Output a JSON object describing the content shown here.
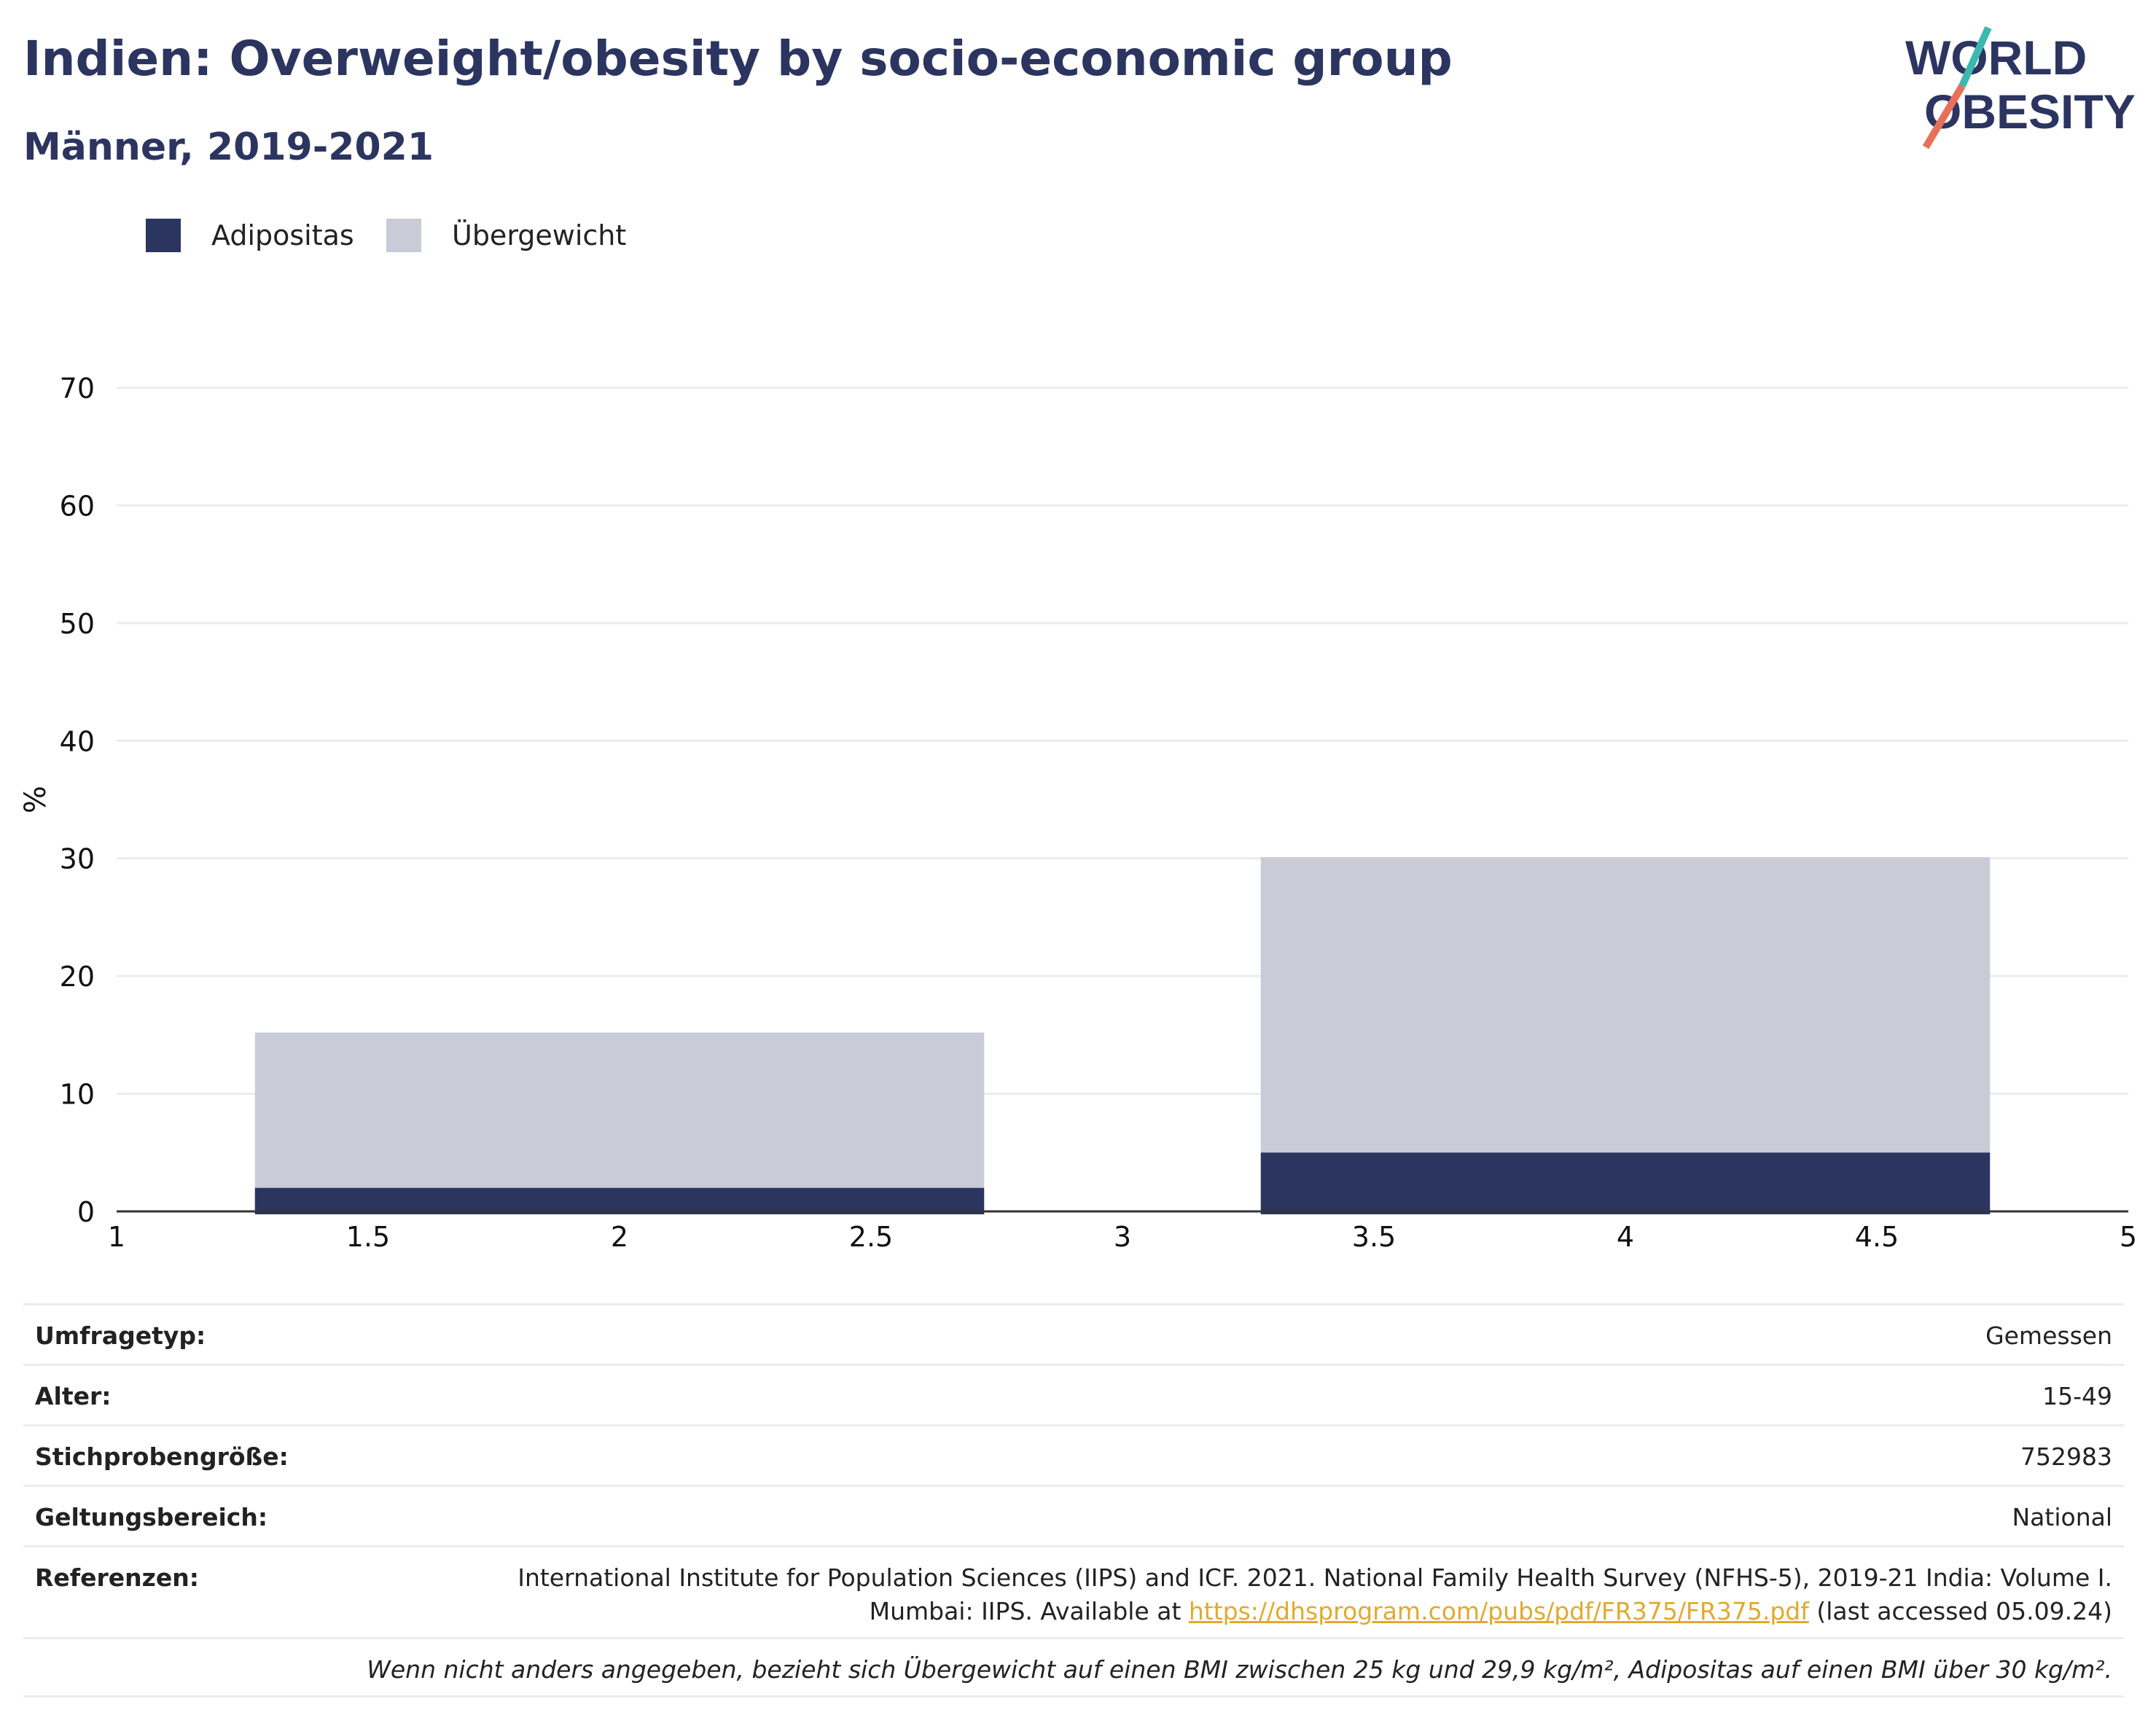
{
  "header": {
    "title": "Indien: Overweight/obesity by socio-economic group",
    "subtitle": "Männer, 2019-2021"
  },
  "logo": {
    "line1": "WORLD",
    "line2": "OBESITY",
    "colors": {
      "text": "#2c3560",
      "slash_top": "#3bb8b0",
      "slash_bottom": "#e8705a"
    }
  },
  "colors": {
    "adipositas": "#2c3560",
    "uebergewicht": "#c9cbd7",
    "grid": "#e9ecf1",
    "axis": "#333333"
  },
  "chart_data": {
    "type": "bar",
    "stacked": true,
    "legend": [
      "Adipositas",
      "Übergewicht"
    ],
    "legend_position": "top-left",
    "ylabel": "%",
    "xlim": [
      1,
      5
    ],
    "ylim": [
      0,
      70
    ],
    "x_ticks": [
      "1",
      "1.5",
      "2",
      "2.5",
      "3",
      "3.5",
      "4",
      "4.5",
      "5"
    ],
    "y_ticks": [
      "0",
      "10",
      "20",
      "30",
      "40",
      "50",
      "60",
      "70"
    ],
    "grid": true,
    "bars": [
      {
        "x": 2,
        "width": 1.45,
        "adipositas": 2.0,
        "uebergewicht": 13.2
      },
      {
        "x": 4,
        "width": 1.45,
        "adipositas": 5.0,
        "uebergewicht": 25.1
      }
    ]
  },
  "info": {
    "survey_type": {
      "label": "Umfragetyp:",
      "value": "Gemessen"
    },
    "age": {
      "label": "Alter:",
      "value": "15-49"
    },
    "sample_size": {
      "label": "Stichprobengröße:",
      "value": "752983"
    },
    "scope": {
      "label": "Geltungsbereich:",
      "value": "National"
    },
    "references": {
      "label": "Referenzen:",
      "line1": "International Institute for Population Sciences (IIPS) and ICF. 2021. National Family Health Survey (NFHS-5), 2019-21 India: Volume I.",
      "line2_prefix": "Mumbai: IIPS. Available at ",
      "link": "https://dhsprogram.com/pubs/pdf/FR375/FR375.pdf",
      "line2_suffix": " (last accessed 05.09.24)"
    },
    "footnote": "Wenn nicht anders angegeben, bezieht sich Übergewicht auf einen BMI zwischen 25 kg und 29,9 kg/m², Adipositas auf einen BMI über 30 kg/m²."
  }
}
